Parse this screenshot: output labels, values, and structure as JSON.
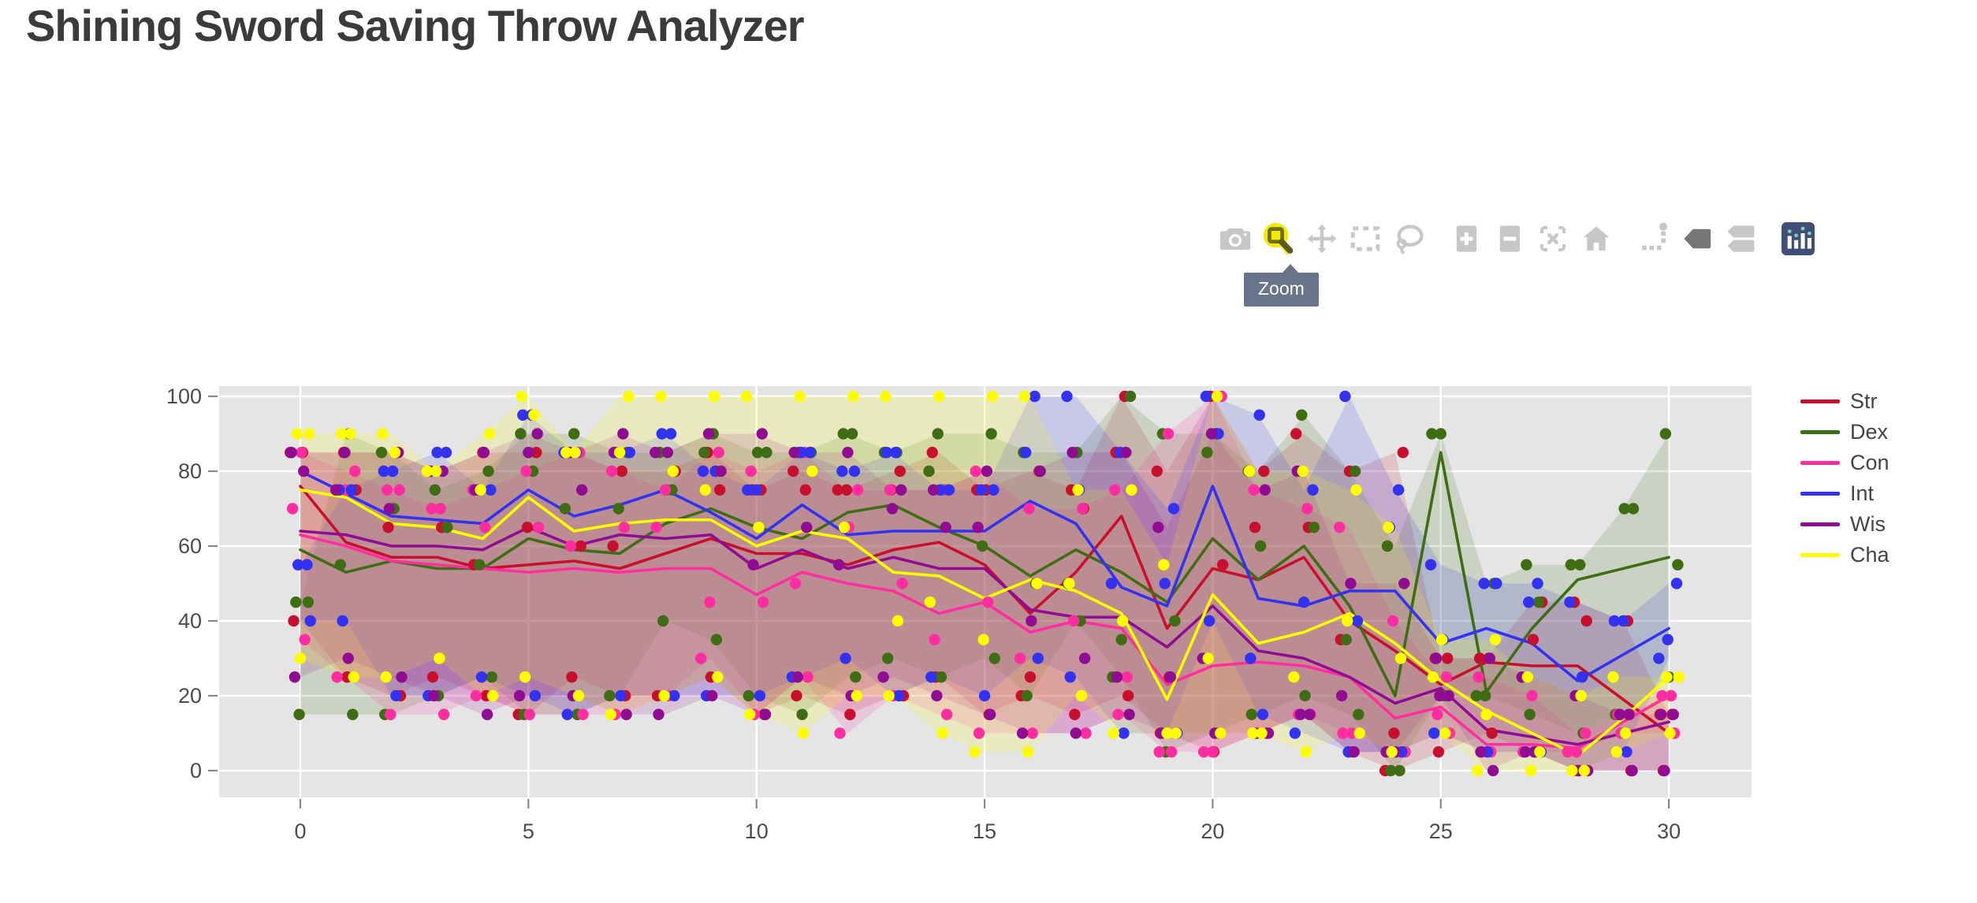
{
  "page": {
    "title": "Shining Sword Saving Throw Analyzer"
  },
  "modebar": {
    "tooltip_label": "Zoom",
    "active_button": "zoom",
    "icon_color": "#c7c7c7",
    "active_icon_color": "#6e6e12",
    "highlight_color": "#f2ea0a",
    "tooltip_bg": "#69738a",
    "logo_bg": "#3f4f75",
    "buttons": [
      {
        "id": "camera",
        "icon": "camera-icon"
      },
      {
        "id": "zoom",
        "icon": "zoom-magnifier-icon"
      },
      {
        "id": "pan",
        "icon": "pan-arrows-icon"
      },
      {
        "id": "box-select",
        "icon": "box-select-icon"
      },
      {
        "id": "lasso",
        "icon": "lasso-select-icon"
      },
      {
        "id": "zoom-in",
        "icon": "zoom-in-icon"
      },
      {
        "id": "zoom-out",
        "icon": "zoom-out-icon"
      },
      {
        "id": "autoscale",
        "icon": "autoscale-icon"
      },
      {
        "id": "reset-axes",
        "icon": "home-icon"
      },
      {
        "id": "spikelines",
        "icon": "spikelines-icon"
      },
      {
        "id": "hover-closest",
        "icon": "tag-single-icon"
      },
      {
        "id": "hover-compare",
        "icon": "tag-double-icon"
      },
      {
        "id": "plotly-logo",
        "icon": "plotly-logo-icon"
      }
    ]
  },
  "chart_data": {
    "type": "line",
    "title": "",
    "xlabel": "",
    "ylabel": "",
    "x": [
      0,
      1,
      2,
      3,
      4,
      5,
      6,
      7,
      8,
      9,
      10,
      11,
      12,
      13,
      14,
      15,
      16,
      17,
      18,
      19,
      20,
      21,
      22,
      23,
      24,
      25,
      26,
      27,
      28,
      29,
      30
    ],
    "x_ticks": [
      0,
      5,
      10,
      15,
      20,
      25,
      30
    ],
    "y_ticks": [
      0,
      20,
      40,
      60,
      80,
      100
    ],
    "xlim": [
      -1.8,
      31.8
    ],
    "ylim": [
      -7,
      103
    ],
    "grid": true,
    "plot_bg": "#e5e5e5",
    "grid_color": "#ffffff",
    "tick_label_color": "#4c4c4c",
    "legend_position": "right",
    "band_opacity": 0.16,
    "marker_radius": 7.2,
    "line_width": 3.6,
    "series": [
      {
        "name": "Str",
        "color": "#c8102e",
        "line": [
          76,
          61,
          57,
          57,
          54,
          55,
          56,
          54,
          58,
          62,
          58,
          58,
          55,
          59,
          61,
          55,
          42,
          53,
          68,
          38,
          54,
          51,
          57,
          40,
          32,
          23,
          29,
          28,
          28,
          19,
          10
        ],
        "band_upper": [
          85,
          85,
          85,
          80,
          85,
          85,
          85,
          80,
          80,
          85,
          75,
          80,
          75,
          80,
          85,
          75,
          80,
          75,
          100,
          80,
          100,
          80,
          90,
          80,
          85,
          30,
          30,
          45,
          45,
          40,
          15
        ],
        "band_lower": [
          40,
          25,
          20,
          25,
          20,
          15,
          25,
          20,
          20,
          25,
          15,
          20,
          15,
          20,
          25,
          15,
          20,
          15,
          20,
          10,
          5,
          10,
          15,
          5,
          0,
          5,
          10,
          5,
          0,
          0,
          0
        ]
      },
      {
        "name": "Dex",
        "color": "#3f6d14",
        "line": [
          59,
          53,
          56,
          54,
          54,
          62,
          59,
          58,
          66,
          70,
          65,
          62,
          69,
          71,
          65,
          60,
          52,
          59,
          53,
          45,
          62,
          51,
          60,
          44,
          20,
          85,
          21,
          38,
          51,
          54,
          57
        ],
        "band_upper": [
          45,
          90,
          85,
          75,
          80,
          90,
          90,
          85,
          85,
          90,
          85,
          85,
          90,
          85,
          90,
          90,
          85,
          85,
          100,
          90,
          90,
          80,
          95,
          80,
          60,
          90,
          50,
          55,
          55,
          70,
          90
        ],
        "band_lower": [
          15,
          15,
          15,
          20,
          25,
          15,
          15,
          20,
          40,
          35,
          20,
          15,
          25,
          30,
          25,
          30,
          20,
          40,
          25,
          5,
          10,
          15,
          20,
          15,
          0,
          20,
          20,
          15,
          10,
          15,
          25
        ]
      },
      {
        "name": "Con",
        "color": "#ff2d9f",
        "line": [
          63,
          60,
          56,
          55,
          54,
          53,
          54,
          53,
          54,
          54,
          47,
          53,
          50,
          48,
          42,
          45,
          37,
          40,
          38,
          23,
          28,
          29,
          28,
          25,
          14,
          17,
          7,
          7,
          6,
          13,
          20
        ],
        "band_upper": [
          85,
          80,
          75,
          70,
          75,
          80,
          85,
          80,
          75,
          85,
          80,
          85,
          75,
          75,
          75,
          80,
          70,
          70,
          75,
          90,
          100,
          75,
          70,
          65,
          40,
          25,
          25,
          20,
          10,
          15,
          20
        ],
        "band_lower": [
          35,
          25,
          15,
          15,
          20,
          15,
          15,
          15,
          20,
          30,
          15,
          25,
          10,
          20,
          15,
          10,
          10,
          10,
          15,
          5,
          5,
          10,
          15,
          10,
          5,
          10,
          5,
          5,
          5,
          10,
          10
        ]
      },
      {
        "name": "Int",
        "color": "#3232f0",
        "line": [
          80,
          74,
          68,
          67,
          66,
          75,
          68,
          71,
          75,
          69,
          62,
          71,
          63,
          64,
          64,
          64,
          72,
          66,
          49,
          44,
          76,
          46,
          44,
          48,
          48,
          34,
          38,
          34,
          24,
          31,
          38
        ],
        "band_upper": [
          55,
          75,
          80,
          85,
          75,
          95,
          85,
          85,
          90,
          80,
          75,
          85,
          80,
          85,
          75,
          75,
          100,
          100,
          85,
          70,
          100,
          95,
          75,
          100,
          75,
          55,
          50,
          50,
          45,
          40,
          50
        ],
        "band_lower": [
          40,
          40,
          20,
          20,
          25,
          20,
          15,
          20,
          20,
          20,
          20,
          25,
          30,
          20,
          25,
          20,
          30,
          25,
          10,
          10,
          40,
          15,
          10,
          5,
          5,
          10,
          5,
          5,
          0,
          5,
          30
        ]
      },
      {
        "name": "Wis",
        "color": "#900d93",
        "line": [
          64,
          63,
          60,
          60,
          59,
          65,
          60,
          63,
          62,
          63,
          54,
          59,
          54,
          57,
          54,
          54,
          43,
          41,
          41,
          33,
          44,
          32,
          30,
          25,
          18,
          22,
          11,
          9,
          7,
          10,
          13
        ],
        "band_upper": [
          85,
          85,
          85,
          80,
          85,
          90,
          85,
          90,
          85,
          90,
          90,
          85,
          85,
          75,
          75,
          80,
          80,
          85,
          85,
          65,
          90,
          75,
          80,
          50,
          50,
          30,
          30,
          25,
          20,
          15,
          15
        ],
        "band_lower": [
          25,
          30,
          25,
          20,
          15,
          20,
          20,
          15,
          15,
          20,
          15,
          25,
          20,
          25,
          20,
          15,
          10,
          10,
          15,
          10,
          10,
          10,
          15,
          5,
          5,
          20,
          0,
          5,
          0,
          0,
          0
        ]
      },
      {
        "name": "Cha",
        "color": "#fdfd00",
        "line": [
          75,
          73,
          66,
          65,
          62,
          73,
          64,
          66,
          67,
          67,
          60,
          64,
          62,
          53,
          52,
          46,
          51,
          48,
          42,
          19,
          47,
          34,
          37,
          42,
          34,
          24,
          16,
          10,
          4,
          14,
          25
        ],
        "band_upper": [
          90,
          90,
          90,
          80,
          90,
          100,
          85,
          100,
          100,
          100,
          100,
          100,
          100,
          100,
          100,
          100,
          100,
          75,
          75,
          55,
          100,
          80,
          80,
          75,
          65,
          35,
          35,
          25,
          20,
          25,
          25
        ],
        "band_lower": [
          30,
          25,
          25,
          30,
          20,
          25,
          20,
          15,
          20,
          25,
          15,
          10,
          20,
          20,
          10,
          5,
          5,
          20,
          10,
          10,
          10,
          10,
          5,
          10,
          5,
          10,
          0,
          0,
          0,
          5,
          10
        ]
      }
    ]
  }
}
